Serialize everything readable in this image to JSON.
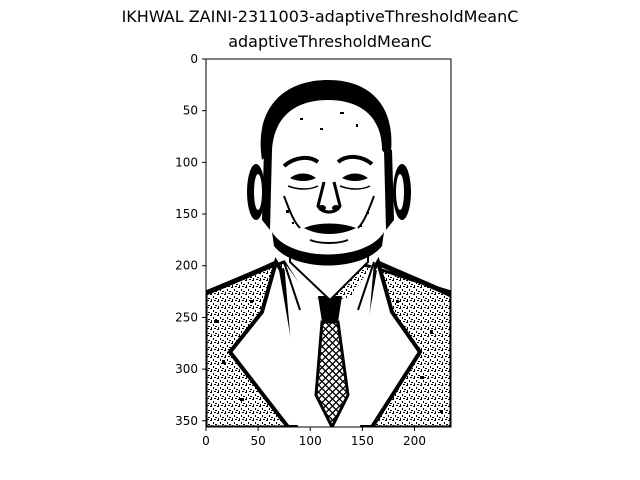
{
  "figure": {
    "suptitle": "IKHWAL ZAINI-2311003-adaptiveThresholdMeanC",
    "axes_title": "adaptiveThresholdMeanC"
  },
  "chart_data": {
    "type": "image",
    "title": "adaptiveThresholdMeanC",
    "xlabel": "",
    "ylabel": "",
    "xlim": [
      0,
      235
    ],
    "ylim": [
      356,
      0
    ],
    "x_ticks": [
      0,
      50,
      100,
      150,
      200
    ],
    "y_ticks": [
      0,
      50,
      100,
      150,
      200,
      250,
      300,
      350
    ],
    "grid": false,
    "colormap": "gray (binary black/white)"
  },
  "image": {
    "semantic": "binary-thresholded-portrait-of-man-in-suit-and-tie",
    "background_color": "#ffffff",
    "ink_color": "#000000"
  }
}
